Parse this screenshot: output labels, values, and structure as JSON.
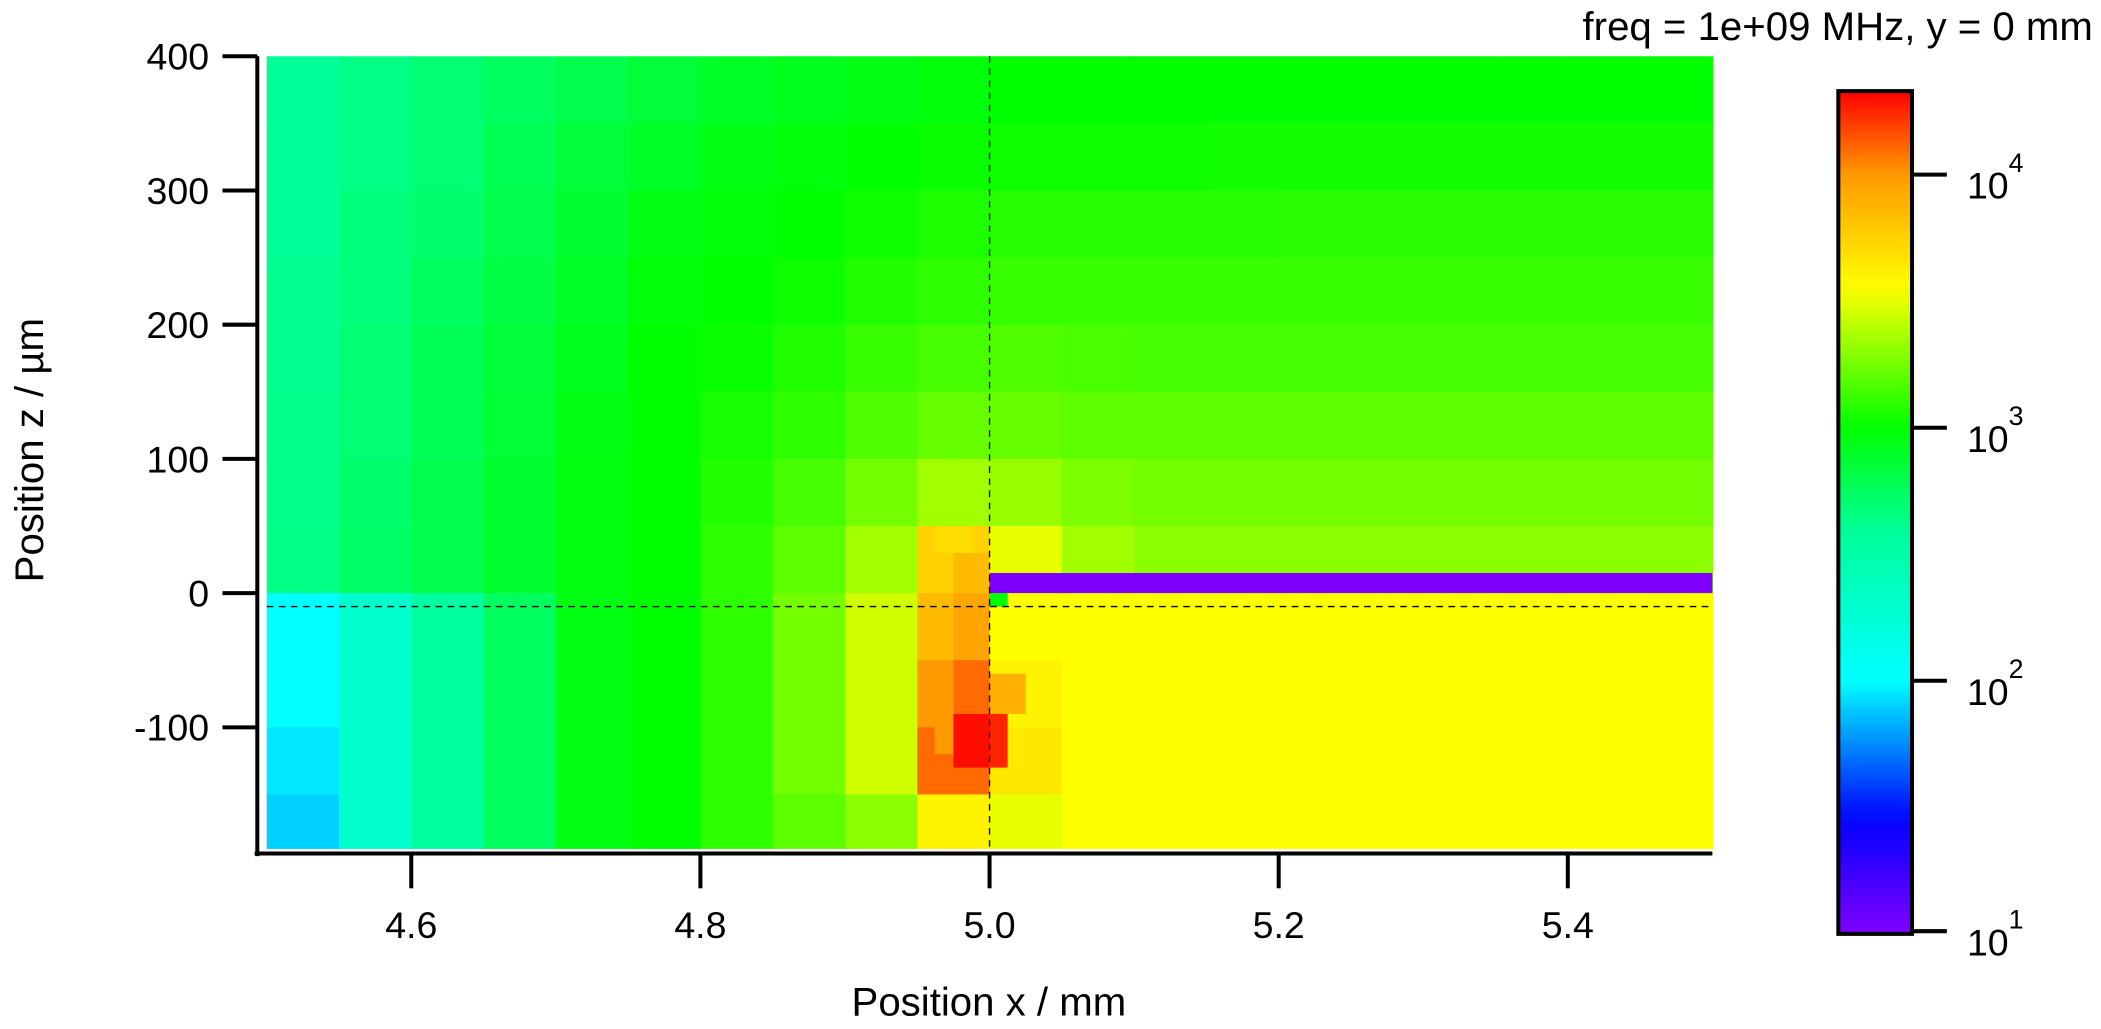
{
  "chart_data": {
    "type": "heatmap",
    "title": "freq = 1e+09 MHz, y = 0 mm",
    "xlabel": "Position x / mm",
    "ylabel": "Position z / µm",
    "xlim": [
      4.5,
      5.5
    ],
    "ylim": [
      -190,
      400
    ],
    "xticks": [
      4.6,
      4.8,
      5.0,
      5.2,
      5.4
    ],
    "xtick_labels": [
      "4.6",
      "4.8",
      "5.0",
      "5.2",
      "5.4"
    ],
    "yticks": [
      400,
      300,
      200,
      100,
      0,
      -100
    ],
    "ytick_labels": [
      "400",
      "300",
      "200",
      "100",
      "0",
      "-100"
    ],
    "crosshair": {
      "x": 5.0,
      "z": -10
    },
    "colorbar": {
      "scale": "log",
      "range_log10": [
        1,
        4.33
      ],
      "ticks_log10": [
        4,
        3,
        2,
        1
      ],
      "tick_base": "10",
      "tick_exponents": [
        "4",
        "3",
        "2",
        "1"
      ],
      "colormap_stops": [
        [
          1,
          "#8000ff"
        ],
        [
          1.45,
          "#0000ff"
        ],
        [
          2,
          "#00ffff"
        ],
        [
          2.6,
          "#00ff98"
        ],
        [
          3,
          "#00ff00"
        ],
        [
          3.55,
          "#ffff00"
        ],
        [
          4,
          "#ff9900"
        ],
        [
          4.33,
          "#ff0000"
        ]
      ]
    },
    "grid_x_edges": [
      4.5,
      4.55,
      4.6,
      4.65,
      4.7,
      4.75,
      4.8,
      4.85,
      4.9,
      4.95,
      5.0,
      5.05,
      5.1,
      5.15,
      5.2,
      5.25,
      5.3,
      5.35,
      5.4,
      5.45,
      5.5
    ],
    "grid_z_edges": [
      400,
      350,
      300,
      250,
      200,
      150,
      100,
      50,
      0,
      -50,
      -100,
      -150,
      -190
    ],
    "values_log10": [
      [
        2.6,
        2.65,
        2.7,
        2.75,
        2.8,
        2.85,
        2.9,
        2.93,
        2.95,
        2.97,
        3.0,
        3.0,
        3.0,
        3.0,
        3.0,
        3.0,
        3.0,
        3.0,
        3.0,
        3.0
      ],
      [
        2.6,
        2.65,
        2.7,
        2.78,
        2.85,
        2.9,
        2.95,
        2.97,
        3.0,
        3.02,
        3.03,
        3.03,
        3.03,
        3.04,
        3.04,
        3.04,
        3.04,
        3.04,
        3.04,
        3.04
      ],
      [
        2.6,
        2.67,
        2.72,
        2.8,
        2.88,
        2.95,
        2.98,
        3.0,
        3.03,
        3.06,
        3.08,
        3.08,
        3.08,
        3.08,
        3.09,
        3.09,
        3.09,
        3.09,
        3.09,
        3.09
      ],
      [
        2.62,
        2.68,
        2.75,
        2.82,
        2.9,
        2.98,
        3.0,
        3.03,
        3.07,
        3.1,
        3.12,
        3.12,
        3.12,
        3.12,
        3.12,
        3.12,
        3.12,
        3.12,
        3.12,
        3.12
      ],
      [
        2.62,
        2.7,
        2.78,
        2.85,
        2.93,
        3.0,
        3.02,
        3.07,
        3.12,
        3.15,
        3.17,
        3.16,
        3.15,
        3.15,
        3.15,
        3.15,
        3.15,
        3.15,
        3.15,
        3.15
      ],
      [
        2.63,
        2.7,
        2.78,
        2.86,
        2.95,
        3.0,
        3.05,
        3.1,
        3.17,
        3.22,
        3.22,
        3.2,
        3.2,
        3.2,
        3.2,
        3.2,
        3.2,
        3.2,
        3.2,
        3.2
      ],
      [
        2.64,
        2.72,
        2.8,
        2.88,
        2.96,
        3.0,
        3.07,
        3.15,
        3.25,
        3.35,
        3.33,
        3.27,
        3.25,
        3.25,
        3.25,
        3.25,
        3.25,
        3.25,
        3.25,
        3.25
      ],
      [
        2.65,
        2.73,
        2.8,
        2.88,
        2.96,
        3.0,
        3.1,
        3.2,
        3.35,
        3.75,
        3.5,
        3.35,
        3.3,
        3.3,
        3.3,
        3.3,
        3.3,
        3.3,
        3.3,
        3.3
      ],
      [
        2.0,
        2.3,
        2.55,
        2.75,
        2.95,
        3.0,
        3.1,
        3.25,
        3.45,
        3.85,
        3.55,
        3.55,
        3.55,
        3.55,
        3.55,
        3.55,
        3.55,
        3.55,
        3.55,
        3.55
      ],
      [
        2.0,
        2.3,
        2.55,
        2.75,
        2.95,
        3.0,
        3.1,
        3.25,
        3.45,
        4.0,
        3.6,
        3.55,
        3.55,
        3.55,
        3.55,
        3.55,
        3.55,
        3.55,
        3.55,
        3.55
      ],
      [
        1.95,
        2.3,
        2.55,
        2.75,
        2.95,
        3.0,
        3.1,
        3.25,
        3.45,
        4.1,
        3.65,
        3.55,
        3.55,
        3.55,
        3.55,
        3.55,
        3.55,
        3.55,
        3.55,
        3.55
      ],
      [
        1.9,
        2.3,
        2.55,
        2.75,
        2.95,
        3.0,
        3.1,
        3.2,
        3.3,
        3.6,
        3.5,
        3.55,
        3.55,
        3.55,
        3.55,
        3.55,
        3.55,
        3.55,
        3.55,
        3.55
      ]
    ],
    "fine_cells": [
      [
        4.962,
        4.975,
        -120,
        -60,
        4.0
      ],
      [
        4.975,
        5.0,
        -50,
        0,
        3.95
      ],
      [
        4.975,
        5.0,
        0,
        30,
        3.85
      ],
      [
        4.962,
        4.988,
        30,
        50,
        3.7
      ],
      [
        4.975,
        5.0,
        -90,
        -50,
        4.1
      ],
      [
        5.0,
        5.025,
        -90,
        -60,
        3.9
      ],
      [
        4.975,
        5.0,
        -130,
        -90,
        4.3
      ],
      [
        5.0,
        5.0125,
        -130,
        -90,
        4.25
      ],
      [
        5.0,
        5.0125,
        -10,
        0,
        3.0
      ]
    ],
    "metal_strip": {
      "x": [
        5.0,
        5.5
      ],
      "z": [
        0,
        15
      ],
      "value_log10": 1.0
    }
  }
}
